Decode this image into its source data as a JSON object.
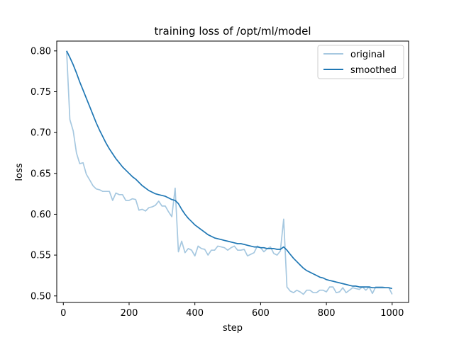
{
  "chart_data": {
    "type": "line",
    "title": "training loss of /opt/ml/model",
    "xlabel": "step",
    "ylabel": "loss",
    "xlim": [
      -20,
      1050
    ],
    "ylim": [
      0.492,
      0.812
    ],
    "xticks": [
      0,
      200,
      400,
      600,
      800,
      1000
    ],
    "yticks": [
      0.5,
      0.55,
      0.6,
      0.65,
      0.7,
      0.75,
      0.8
    ],
    "xtick_labels": [
      "0",
      "200",
      "400",
      "600",
      "800",
      "1000"
    ],
    "ytick_labels": [
      "0.50",
      "0.55",
      "0.60",
      "0.65",
      "0.70",
      "0.75",
      "0.80"
    ],
    "grid": false,
    "legend": {
      "position": "top-right"
    },
    "series": [
      {
        "name": "original",
        "color": "#a6c8e0",
        "points": [
          [
            10,
            0.8
          ],
          [
            20,
            0.716
          ],
          [
            30,
            0.702
          ],
          [
            40,
            0.675
          ],
          [
            50,
            0.662
          ],
          [
            60,
            0.663
          ],
          [
            70,
            0.649
          ],
          [
            80,
            0.642
          ],
          [
            90,
            0.635
          ],
          [
            100,
            0.631
          ],
          [
            110,
            0.63
          ],
          [
            120,
            0.628
          ],
          [
            130,
            0.628
          ],
          [
            140,
            0.628
          ],
          [
            150,
            0.617
          ],
          [
            160,
            0.626
          ],
          [
            170,
            0.624
          ],
          [
            180,
            0.624
          ],
          [
            190,
            0.617
          ],
          [
            200,
            0.617
          ],
          [
            210,
            0.619
          ],
          [
            220,
            0.618
          ],
          [
            230,
            0.605
          ],
          [
            240,
            0.606
          ],
          [
            250,
            0.604
          ],
          [
            260,
            0.608
          ],
          [
            270,
            0.609
          ],
          [
            280,
            0.611
          ],
          [
            290,
            0.616
          ],
          [
            300,
            0.61
          ],
          [
            310,
            0.61
          ],
          [
            320,
            0.603
          ],
          [
            330,
            0.597
          ],
          [
            340,
            0.632
          ],
          [
            350,
            0.554
          ],
          [
            360,
            0.567
          ],
          [
            370,
            0.553
          ],
          [
            380,
            0.558
          ],
          [
            390,
            0.556
          ],
          [
            400,
            0.549
          ],
          [
            410,
            0.561
          ],
          [
            420,
            0.558
          ],
          [
            430,
            0.557
          ],
          [
            440,
            0.55
          ],
          [
            450,
            0.556
          ],
          [
            460,
            0.556
          ],
          [
            470,
            0.561
          ],
          [
            480,
            0.56
          ],
          [
            490,
            0.559
          ],
          [
            500,
            0.556
          ],
          [
            510,
            0.559
          ],
          [
            520,
            0.561
          ],
          [
            530,
            0.556
          ],
          [
            540,
            0.556
          ],
          [
            550,
            0.557
          ],
          [
            560,
            0.549
          ],
          [
            570,
            0.551
          ],
          [
            580,
            0.553
          ],
          [
            590,
            0.561
          ],
          [
            600,
            0.559
          ],
          [
            610,
            0.554
          ],
          [
            620,
            0.558
          ],
          [
            630,
            0.56
          ],
          [
            640,
            0.552
          ],
          [
            650,
            0.55
          ],
          [
            660,
            0.555
          ],
          [
            670,
            0.594
          ],
          [
            680,
            0.511
          ],
          [
            690,
            0.506
          ],
          [
            700,
            0.504
          ],
          [
            710,
            0.507
          ],
          [
            720,
            0.505
          ],
          [
            730,
            0.502
          ],
          [
            740,
            0.507
          ],
          [
            750,
            0.507
          ],
          [
            760,
            0.504
          ],
          [
            770,
            0.504
          ],
          [
            780,
            0.507
          ],
          [
            790,
            0.507
          ],
          [
            800,
            0.505
          ],
          [
            810,
            0.511
          ],
          [
            820,
            0.511
          ],
          [
            830,
            0.504
          ],
          [
            840,
            0.505
          ],
          [
            850,
            0.51
          ],
          [
            860,
            0.504
          ],
          [
            870,
            0.507
          ],
          [
            880,
            0.51
          ],
          [
            890,
            0.509
          ],
          [
            900,
            0.508
          ],
          [
            910,
            0.511
          ],
          [
            920,
            0.507
          ],
          [
            930,
            0.511
          ],
          [
            940,
            0.503
          ],
          [
            950,
            0.511
          ],
          [
            960,
            0.511
          ],
          [
            970,
            0.511
          ],
          [
            980,
            0.51
          ],
          [
            990,
            0.51
          ],
          [
            1000,
            0.502
          ]
        ]
      },
      {
        "name": "smoothed",
        "color": "#1f77b4",
        "points": [
          [
            10,
            0.8
          ],
          [
            20,
            0.792
          ],
          [
            30,
            0.783
          ],
          [
            40,
            0.773
          ],
          [
            50,
            0.762
          ],
          [
            60,
            0.752
          ],
          [
            70,
            0.742
          ],
          [
            80,
            0.732
          ],
          [
            90,
            0.722
          ],
          [
            100,
            0.712
          ],
          [
            110,
            0.703
          ],
          [
            120,
            0.695
          ],
          [
            130,
            0.687
          ],
          [
            140,
            0.68
          ],
          [
            150,
            0.674
          ],
          [
            160,
            0.668
          ],
          [
            170,
            0.663
          ],
          [
            180,
            0.658
          ],
          [
            190,
            0.654
          ],
          [
            200,
            0.65
          ],
          [
            210,
            0.646
          ],
          [
            220,
            0.643
          ],
          [
            230,
            0.639
          ],
          [
            240,
            0.635
          ],
          [
            250,
            0.632
          ],
          [
            260,
            0.629
          ],
          [
            270,
            0.627
          ],
          [
            280,
            0.625
          ],
          [
            290,
            0.624
          ],
          [
            300,
            0.623
          ],
          [
            310,
            0.622
          ],
          [
            320,
            0.62
          ],
          [
            330,
            0.618
          ],
          [
            340,
            0.617
          ],
          [
            350,
            0.613
          ],
          [
            360,
            0.606
          ],
          [
            370,
            0.6
          ],
          [
            380,
            0.595
          ],
          [
            390,
            0.591
          ],
          [
            400,
            0.587
          ],
          [
            410,
            0.584
          ],
          [
            420,
            0.581
          ],
          [
            430,
            0.578
          ],
          [
            440,
            0.575
          ],
          [
            450,
            0.573
          ],
          [
            460,
            0.571
          ],
          [
            470,
            0.57
          ],
          [
            480,
            0.569
          ],
          [
            490,
            0.568
          ],
          [
            500,
            0.567
          ],
          [
            510,
            0.566
          ],
          [
            520,
            0.565
          ],
          [
            530,
            0.564
          ],
          [
            540,
            0.564
          ],
          [
            550,
            0.563
          ],
          [
            560,
            0.562
          ],
          [
            570,
            0.561
          ],
          [
            580,
            0.56
          ],
          [
            590,
            0.56
          ],
          [
            600,
            0.559
          ],
          [
            610,
            0.559
          ],
          [
            620,
            0.558
          ],
          [
            630,
            0.558
          ],
          [
            640,
            0.558
          ],
          [
            650,
            0.557
          ],
          [
            660,
            0.557
          ],
          [
            670,
            0.56
          ],
          [
            680,
            0.556
          ],
          [
            690,
            0.551
          ],
          [
            700,
            0.546
          ],
          [
            710,
            0.542
          ],
          [
            720,
            0.538
          ],
          [
            730,
            0.534
          ],
          [
            740,
            0.531
          ],
          [
            750,
            0.529
          ],
          [
            760,
            0.527
          ],
          [
            770,
            0.525
          ],
          [
            780,
            0.523
          ],
          [
            790,
            0.522
          ],
          [
            800,
            0.52
          ],
          [
            810,
            0.519
          ],
          [
            820,
            0.518
          ],
          [
            830,
            0.517
          ],
          [
            840,
            0.516
          ],
          [
            850,
            0.515
          ],
          [
            860,
            0.514
          ],
          [
            870,
            0.513
          ],
          [
            880,
            0.512
          ],
          [
            890,
            0.512
          ],
          [
            900,
            0.511
          ],
          [
            910,
            0.511
          ],
          [
            920,
            0.511
          ],
          [
            930,
            0.511
          ],
          [
            940,
            0.51
          ],
          [
            950,
            0.51
          ],
          [
            960,
            0.51
          ],
          [
            970,
            0.51
          ],
          [
            980,
            0.51
          ],
          [
            990,
            0.51
          ],
          [
            1000,
            0.509
          ]
        ]
      }
    ]
  }
}
